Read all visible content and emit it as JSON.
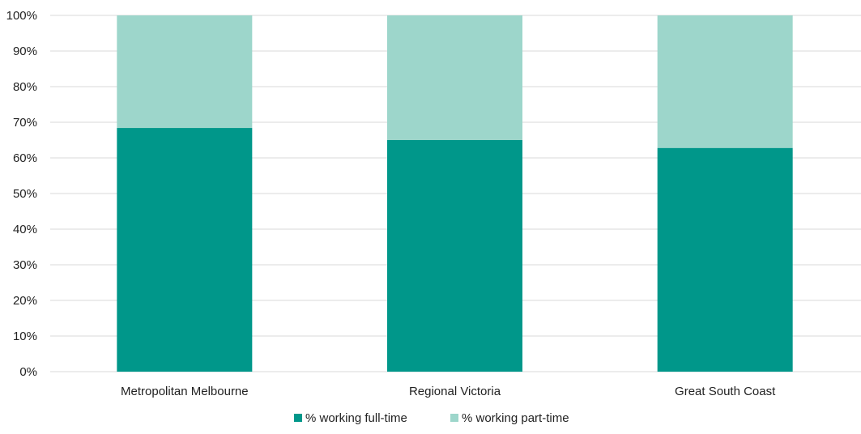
{
  "chart_data": {
    "type": "bar",
    "stacked": true,
    "categories": [
      "Metropolitan Melbourne",
      "Regional Victoria",
      "Great South Coast"
    ],
    "series": [
      {
        "name": "% working full-time",
        "values": [
          68.4,
          65.0,
          62.8
        ],
        "color": "#00978a"
      },
      {
        "name": "% working part-time",
        "values": [
          31.6,
          35.0,
          37.2
        ],
        "color": "#9dd6cb"
      }
    ],
    "ylim": [
      0,
      100
    ],
    "yticks": [
      "0%",
      "10%",
      "20%",
      "30%",
      "40%",
      "50%",
      "60%",
      "70%",
      "80%",
      "90%",
      "100%"
    ],
    "grid": true,
    "legend": "bottom"
  }
}
